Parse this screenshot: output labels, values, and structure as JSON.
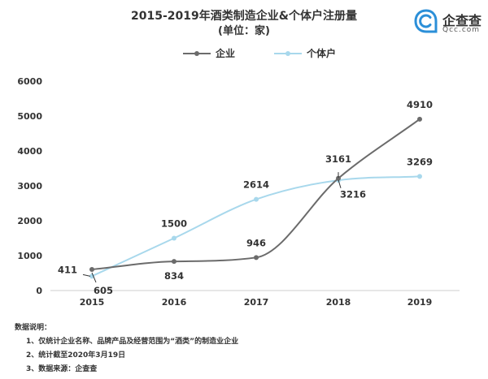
{
  "header": {
    "title": "2015-2019年酒类制造企业&个体户注册量",
    "subtitle": "(单位：家)"
  },
  "logo": {
    "name": "企查查",
    "domain": "Qcc.com"
  },
  "colors": {
    "enterprise": "#6b6b6b",
    "individual": "#a8d8ec",
    "axis": "#cfcfcf"
  },
  "chart_data": {
    "type": "line",
    "x": [
      "2015",
      "2016",
      "2017",
      "2018",
      "2019"
    ],
    "ylim": [
      0,
      6000
    ],
    "yticks": [
      0,
      1000,
      2000,
      3000,
      4000,
      5000,
      6000
    ],
    "grid": false,
    "legend_position": "top-center",
    "series": [
      {
        "name": "企业",
        "color": "#6b6b6b",
        "smooth": true,
        "values": [
          605,
          834,
          946,
          3216,
          4910
        ],
        "labels": [
          "605",
          "834",
          "946",
          "3216",
          "4910"
        ]
      },
      {
        "name": "个体户",
        "color": "#a8d8ec",
        "smooth": true,
        "values": [
          411,
          1500,
          2614,
          3161,
          3269
        ],
        "labels": [
          "411",
          "1500",
          "2614",
          "3161",
          "3269"
        ]
      }
    ]
  },
  "notes": {
    "heading": "数据说明：",
    "items": [
      "1、仅统计企业名称、品牌产品及经营范围为“酒类”的制造业企业",
      "2、统计截至2020年3月19日",
      "3、数据来源：企查查"
    ]
  }
}
